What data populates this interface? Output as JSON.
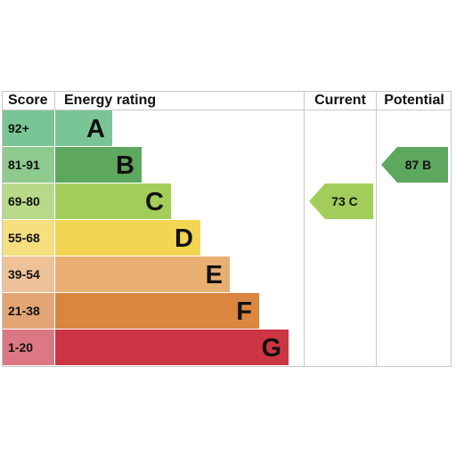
{
  "chart_data": {
    "type": "bar",
    "headers": {
      "score": "Score",
      "rating": "Energy rating",
      "current": "Current",
      "potential": "Potential"
    },
    "bands": [
      {
        "score": "92+",
        "letter": "A",
        "color": "#7ac596",
        "score_bg": "#7ac596"
      },
      {
        "score": "81-91",
        "letter": "B",
        "color": "#5ea75e",
        "score_bg": "#8ec98e"
      },
      {
        "score": "69-80",
        "letter": "C",
        "color": "#a2cd5b",
        "score_bg": "#b9d98a"
      },
      {
        "score": "55-68",
        "letter": "D",
        "color": "#f2d551",
        "score_bg": "#f5df7f"
      },
      {
        "score": "39-54",
        "letter": "E",
        "color": "#e9ae72",
        "score_bg": "#eec199"
      },
      {
        "score": "21-38",
        "letter": "F",
        "color": "#da8540",
        "score_bg": "#e3a574"
      },
      {
        "score": "1-20",
        "letter": "G",
        "color": "#cc3544",
        "score_bg": "#dc7883"
      }
    ],
    "current": {
      "value": 73,
      "letter": "C",
      "label": "73  C",
      "color": "#a2cd5b"
    },
    "potential": {
      "value": 87,
      "letter": "B",
      "label": "87  B",
      "color": "#5ea75e"
    }
  }
}
